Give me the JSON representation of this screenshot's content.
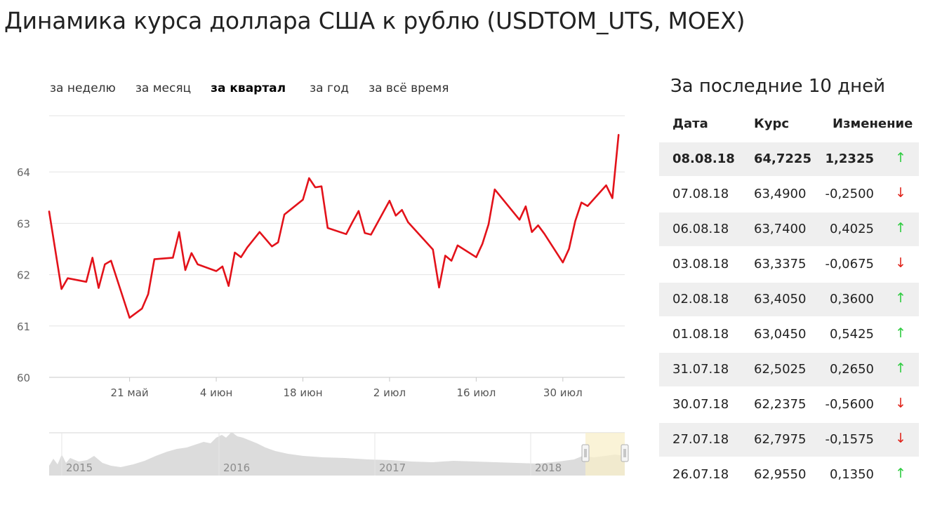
{
  "page": {
    "title": "Динамика курса доллара США к рублю (USDTOM_UTS, MOEX)"
  },
  "period_tabs": [
    {
      "label": "за неделю",
      "active": false
    },
    {
      "label": "за месяц",
      "active": false
    },
    {
      "label": "за квартал",
      "active": true
    },
    {
      "label": "за год",
      "active": false
    },
    {
      "label": "за всё время",
      "active": false
    }
  ],
  "side": {
    "title": "За последние 10 дней",
    "headers": {
      "date": "Дата",
      "rate": "Курс",
      "change": "Изменение"
    },
    "rows": [
      {
        "date": "08.08.18",
        "rate": "64,7225",
        "change": "1,2325",
        "dir": "up",
        "arrow": "↑"
      },
      {
        "date": "07.08.18",
        "rate": "63,4900",
        "change": "-0,2500",
        "dir": "down",
        "arrow": "↓"
      },
      {
        "date": "06.08.18",
        "rate": "63,7400",
        "change": "0,4025",
        "dir": "up",
        "arrow": "↑"
      },
      {
        "date": "03.08.18",
        "rate": "63,3375",
        "change": "-0,0675",
        "dir": "down",
        "arrow": "↓"
      },
      {
        "date": "02.08.18",
        "rate": "63,4050",
        "change": "0,3600",
        "dir": "up",
        "arrow": "↑"
      },
      {
        "date": "01.08.18",
        "rate": "63,0450",
        "change": "0,5425",
        "dir": "up",
        "arrow": "↑"
      },
      {
        "date": "31.07.18",
        "rate": "62,5025",
        "change": "0,2650",
        "dir": "up",
        "arrow": "↑"
      },
      {
        "date": "30.07.18",
        "rate": "62,2375",
        "change": "-0,5600",
        "dir": "down",
        "arrow": "↓"
      },
      {
        "date": "27.07.18",
        "rate": "62,7975",
        "change": "-0,1575",
        "dir": "down",
        "arrow": "↓"
      },
      {
        "date": "26.07.18",
        "rate": "62,9550",
        "change": "0,1350",
        "dir": "up",
        "arrow": "↑"
      }
    ]
  },
  "colors": {
    "line": "#e3121a",
    "grid": "#e3e3e3",
    "navigator_area": "#dcdcdc",
    "navigator_window": "#f8efc9",
    "up": "#2ecc40",
    "down": "#e0241b"
  },
  "chart_data": {
    "type": "line",
    "x_unit": "date",
    "y_ticks": [
      60,
      61,
      62,
      63,
      64
    ],
    "ylim": [
      60,
      65.3
    ],
    "x_ticks": [
      {
        "date": "2018-05-21",
        "label": "21 май"
      },
      {
        "date": "2018-06-04",
        "label": "4 июн"
      },
      {
        "date": "2018-06-18",
        "label": "18 июн"
      },
      {
        "date": "2018-07-02",
        "label": "2 июл"
      },
      {
        "date": "2018-07-16",
        "label": "16 июл"
      },
      {
        "date": "2018-07-30",
        "label": "30 июл"
      }
    ],
    "xlim": [
      "2018-05-08",
      "2018-08-09"
    ],
    "grid": true,
    "series": [
      {
        "points": [
          [
            "2018-05-08",
            63.23
          ],
          [
            "2018-05-10",
            61.72
          ],
          [
            "2018-05-11",
            61.93
          ],
          [
            "2018-05-14",
            61.86
          ],
          [
            "2018-05-15",
            62.33
          ],
          [
            "2018-05-16",
            61.74
          ],
          [
            "2018-05-17",
            62.2
          ],
          [
            "2018-05-18",
            62.27
          ],
          [
            "2018-05-21",
            61.16
          ],
          [
            "2018-05-23",
            61.34
          ],
          [
            "2018-05-24",
            61.62
          ],
          [
            "2018-05-25",
            62.3
          ],
          [
            "2018-05-28",
            62.33
          ],
          [
            "2018-05-29",
            62.83
          ],
          [
            "2018-05-30",
            62.09
          ],
          [
            "2018-05-31",
            62.42
          ],
          [
            "2018-06-01",
            62.2
          ],
          [
            "2018-06-04",
            62.07
          ],
          [
            "2018-06-05",
            62.16
          ],
          [
            "2018-06-06",
            61.78
          ],
          [
            "2018-06-07",
            62.43
          ],
          [
            "2018-06-08",
            62.34
          ],
          [
            "2018-06-09",
            62.53
          ],
          [
            "2018-06-11",
            62.83
          ],
          [
            "2018-06-13",
            62.55
          ],
          [
            "2018-06-14",
            62.63
          ],
          [
            "2018-06-15",
            63.17
          ],
          [
            "2018-06-18",
            63.46
          ],
          [
            "2018-06-19",
            63.88
          ],
          [
            "2018-06-20",
            63.7
          ],
          [
            "2018-06-21",
            63.72
          ],
          [
            "2018-06-22",
            62.91
          ],
          [
            "2018-06-25",
            62.79
          ],
          [
            "2018-06-26",
            63.02
          ],
          [
            "2018-06-27",
            63.24
          ],
          [
            "2018-06-28",
            62.81
          ],
          [
            "2018-06-29",
            62.78
          ],
          [
            "2018-07-02",
            63.44
          ],
          [
            "2018-07-03",
            63.15
          ],
          [
            "2018-07-04",
            63.26
          ],
          [
            "2018-07-05",
            63.02
          ],
          [
            "2018-07-09",
            62.49
          ],
          [
            "2018-07-10",
            61.75
          ],
          [
            "2018-07-11",
            62.37
          ],
          [
            "2018-07-12",
            62.27
          ],
          [
            "2018-07-13",
            62.57
          ],
          [
            "2018-07-16",
            62.34
          ],
          [
            "2018-07-17",
            62.6
          ],
          [
            "2018-07-18",
            62.98
          ],
          [
            "2018-07-19",
            63.66
          ],
          [
            "2018-07-23",
            63.07
          ],
          [
            "2018-07-24",
            63.33
          ],
          [
            "2018-07-25",
            62.83
          ],
          [
            "2018-07-26",
            62.96
          ],
          [
            "2018-07-27",
            62.7975
          ],
          [
            "2018-07-30",
            62.2375
          ],
          [
            "2018-07-31",
            62.5025
          ],
          [
            "2018-08-01",
            63.045
          ],
          [
            "2018-08-02",
            63.405
          ],
          [
            "2018-08-03",
            63.3375
          ],
          [
            "2018-08-06",
            63.74
          ],
          [
            "2018-08-07",
            63.49
          ],
          [
            "2018-08-08",
            64.7225
          ]
        ]
      }
    ],
    "navigator": {
      "year_labels": [
        "2015",
        "2016",
        "2017",
        "2018"
      ],
      "window": [
        "2018-05-08",
        "2018-08-08"
      ]
    }
  }
}
